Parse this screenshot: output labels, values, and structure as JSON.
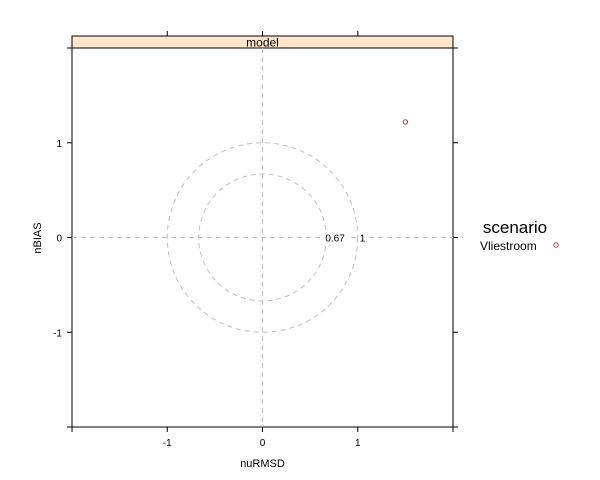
{
  "chart_data": {
    "type": "scatter",
    "panel_title": "model",
    "xlabel": "nuRMSD",
    "ylabel": "nBIAS",
    "xlim": [
      -2,
      2
    ],
    "ylim": [
      -2,
      2
    ],
    "x_ticks": [
      -1,
      0,
      1
    ],
    "y_ticks": [
      -1,
      0,
      1
    ],
    "reference_circles": [
      {
        "radius": 0.67,
        "label": "0.67"
      },
      {
        "radius": 1,
        "label": "1"
      }
    ],
    "reference_lines": {
      "x": 0,
      "y": 0
    },
    "grid": false,
    "legend_title": "scenario",
    "legend_placement": "right",
    "series": [
      {
        "name": "Vliestroom",
        "color": "#c0392b",
        "marker": "circle",
        "points": [
          {
            "x": 1.5,
            "y": 1.22
          }
        ]
      }
    ]
  },
  "colors": {
    "strip_fill": "#ffe5cc",
    "reference": "#bfbfbf",
    "axis": "#000000"
  }
}
